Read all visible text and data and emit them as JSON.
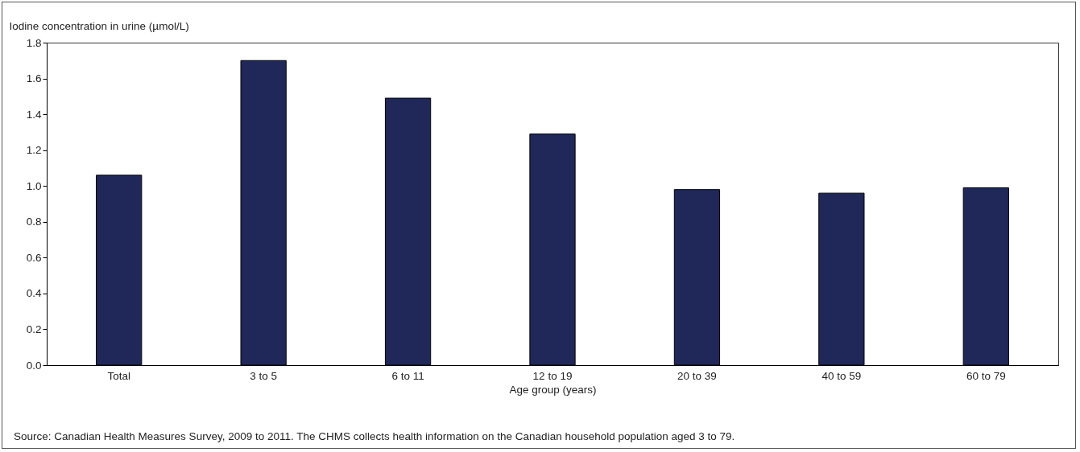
{
  "chart_data": {
    "type": "bar",
    "ylabel": "Iodine concentration in urine (µmol/L)",
    "xlabel": "Age group (years)",
    "categories": [
      "Total",
      "3 to 5",
      "6 to 11",
      "12 to 19",
      "20 to 39",
      "40 to 59",
      "60 to 79"
    ],
    "values": [
      1.06,
      1.7,
      1.49,
      1.29,
      0.98,
      0.96,
      0.99
    ],
    "color": "#1f2859",
    "ylim": [
      0,
      1.8
    ],
    "yticks": [
      {
        "value": 0,
        "label": "0.0"
      },
      {
        "value": 0.2,
        "label": "0.2"
      },
      {
        "value": 0.4,
        "label": "0.4"
      },
      {
        "value": 0.6,
        "label": "0.6"
      },
      {
        "value": 0.8,
        "label": "0.8"
      },
      {
        "value": 1.0,
        "label": "1.0"
      },
      {
        "value": 1.2,
        "label": "1.2"
      },
      {
        "value": 1.4,
        "label": "1.4"
      },
      {
        "value": 1.6,
        "label": "1.6"
      },
      {
        "value": 1.8,
        "label": "1.8"
      }
    ],
    "grid": false,
    "annotations": [
      "Source: Canadian Health Measures Survey, 2009 to 2011. The CHMS collects health information on the Canadian household population aged 3 to 79."
    ]
  }
}
